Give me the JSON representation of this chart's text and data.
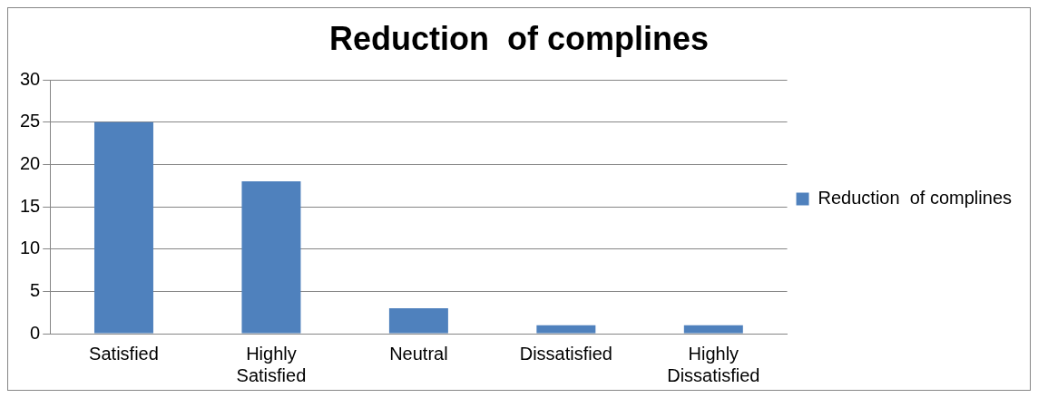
{
  "chart_data": {
    "type": "bar",
    "title": "Reduction  of complines",
    "categories": [
      "Satisfied",
      "Highly Satisfied",
      "Neutral",
      "Dissatisfied",
      "Highly Dissatisfied"
    ],
    "series": [
      {
        "name": "Reduction  of complines",
        "color": "#4f81bd",
        "values": [
          25,
          18,
          3,
          1,
          1
        ]
      }
    ],
    "ylim": [
      0,
      30
    ],
    "yticks": [
      0,
      5,
      10,
      15,
      20,
      25,
      30
    ],
    "grid": "y",
    "legend": "right"
  }
}
